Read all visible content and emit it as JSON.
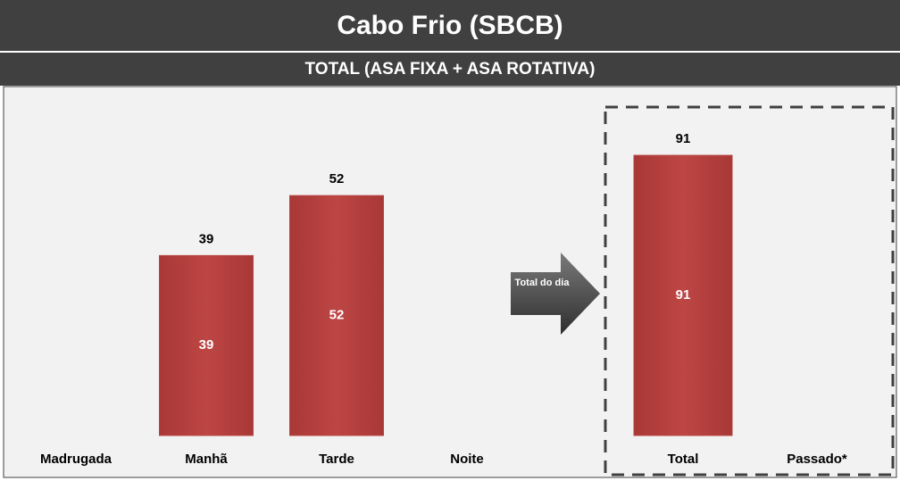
{
  "header": {
    "title": "Cabo Frio (SBCB)",
    "subtitle": "TOTAL (ASA FIXA + ASA ROTATIVA)"
  },
  "arrow_label": "Total do dia",
  "chart_data": [
    {
      "type": "bar",
      "categories": [
        "Madrugada",
        "Manhã",
        "Tarde",
        "Noite"
      ],
      "values": [
        null,
        39,
        52,
        null
      ],
      "color": "#b94442"
    },
    {
      "type": "bar",
      "categories": [
        "Total",
        "Passado*"
      ],
      "values": [
        91,
        null
      ],
      "color": "#b94442"
    }
  ]
}
